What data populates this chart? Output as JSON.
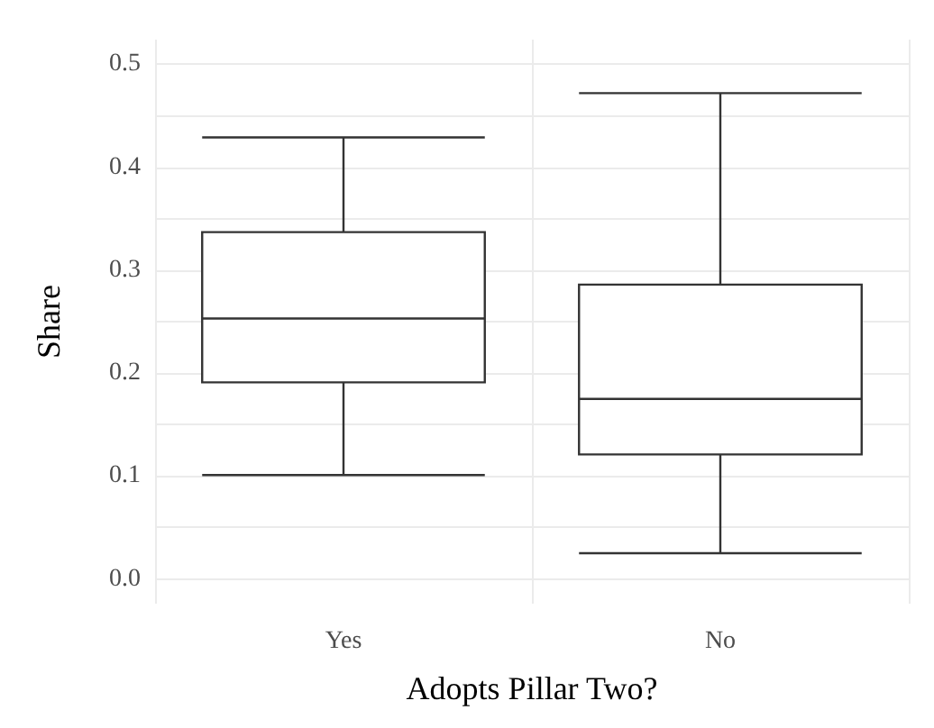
{
  "chart_data": {
    "type": "box",
    "xlabel": "Adopts Pillar Two?",
    "ylabel": "Share",
    "categories": [
      "Yes",
      "No"
    ],
    "boxes": [
      {
        "low": 0.101,
        "q1": 0.191,
        "median": 0.253,
        "q3": 0.337,
        "high": 0.429
      },
      {
        "low": 0.025,
        "q1": 0.121,
        "median": 0.175,
        "q3": 0.286,
        "high": 0.472
      }
    ],
    "color": "#333333",
    "ylim": [
      -0.024,
      0.524
    ],
    "yticks": [
      {
        "value": 0,
        "label": "0.0"
      },
      {
        "value": 0.05,
        "label": null
      },
      0.1,
      {
        "value": 0.15,
        "label": null
      },
      0.2,
      {
        "value": 0.25,
        "label": null
      },
      0.3,
      {
        "value": 0.35,
        "label": null
      },
      0.4,
      {
        "value": 0.45,
        "label": null
      },
      0.5
    ],
    "grid": true
  }
}
